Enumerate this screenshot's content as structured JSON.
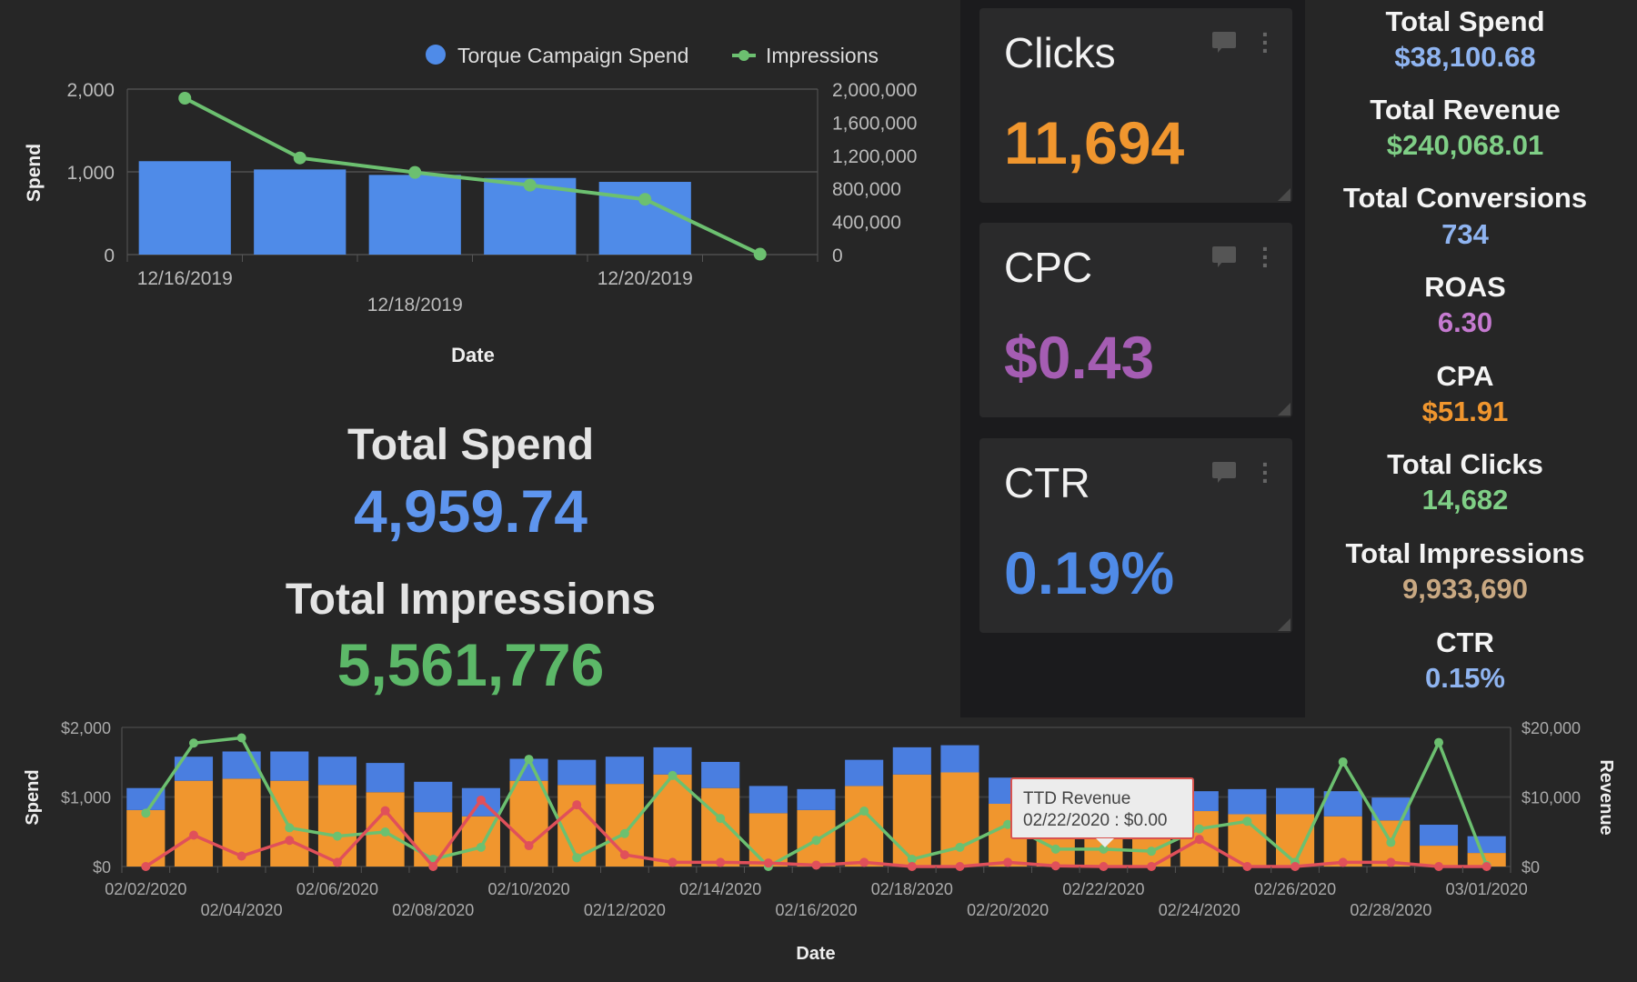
{
  "top_chart": {
    "legend": {
      "spend": "Torque Campaign Spend",
      "impressions": "Impressions"
    },
    "ylabel": "Spend",
    "xlabel": "Date",
    "colors": {
      "spend": "#4f8be8",
      "impressions": "#6cc070"
    }
  },
  "summary": {
    "total_spend_label": "Total Spend",
    "total_spend_value": "4,959.74",
    "total_impressions_label": "Total Impressions",
    "total_impressions_value": "5,561,776"
  },
  "cards": [
    {
      "title": "Clicks",
      "value": "11,694",
      "color": "#f0962e",
      "comment_icon": "comment-icon",
      "menu_icon": "kebab-menu-icon"
    },
    {
      "title": "CPC",
      "value": "$0.43",
      "color": "#a55db3",
      "comment_icon": "comment-icon",
      "menu_icon": "kebab-menu-icon"
    },
    {
      "title": "CTR",
      "value": "0.19%",
      "color": "#4f8be8",
      "comment_icon": "comment-icon",
      "menu_icon": "kebab-menu-icon"
    }
  ],
  "kpis": [
    {
      "label": "Total Spend",
      "value": "$38,100.68",
      "color": "#8fb4f0"
    },
    {
      "label": "Total Revenue",
      "value": "$240,068.01",
      "color": "#7fcf86"
    },
    {
      "label": "Total Conversions",
      "value": "734",
      "color": "#8fb4f0"
    },
    {
      "label": "ROAS",
      "value": "6.30",
      "color": "#c57ad0"
    },
    {
      "label": "CPA",
      "value": "$51.91",
      "color": "#f0962e"
    },
    {
      "label": "Total Clicks",
      "value": "14,682",
      "color": "#7fcf86"
    },
    {
      "label": "Total Impressions",
      "value": "9,933,690",
      "color": "#c8a882"
    },
    {
      "label": "CTR",
      "value": "0.15%",
      "color": "#8fb4f0"
    }
  ],
  "bottom_chart": {
    "ylabel": "Spend",
    "y2label": "Revenue",
    "xlabel": "Date",
    "tooltip": {
      "title": "TTD Revenue",
      "text": "02/22/2020 : $0.00"
    }
  },
  "chart_data": [
    {
      "type": "bar+line",
      "xlabel": "Date",
      "ylabel": "Spend",
      "ylim": [
        0,
        2000
      ],
      "y2lim": [
        0,
        2000000
      ],
      "yticks": [
        "0",
        "1,000",
        "2,000"
      ],
      "y2ticks": [
        "0",
        "400,000",
        "800,000",
        "1,200,000",
        "1,600,000",
        "2,000,000"
      ],
      "x": [
        "12/16/2019",
        "12/17/2019",
        "12/18/2019",
        "12/19/2019",
        "12/20/2019",
        "12/21/2019"
      ],
      "xtick_labels": [
        "12/16/2019",
        "12/18/2019",
        "12/20/2019"
      ],
      "legend": "top-right",
      "grid": true,
      "series": [
        {
          "name": "Torque Campaign Spend",
          "type": "bar",
          "axis": "left",
          "color": "#4f8be8",
          "values": [
            1129,
            1029,
            963,
            926,
            879,
            null
          ]
        },
        {
          "name": "Impressions",
          "type": "line",
          "axis": "right",
          "color": "#6cc070",
          "values": [
            1890000,
            1168000,
            993000,
            839000,
            668000,
            5000
          ]
        }
      ]
    },
    {
      "type": "stacked-bar+line",
      "xlabel": "Date",
      "ylabel": "Spend",
      "y2label": "Revenue",
      "ylim": [
        0,
        2000
      ],
      "y2lim": [
        0,
        20000
      ],
      "yticks": [
        "$0",
        "$1,000",
        "$2,000"
      ],
      "y2ticks": [
        "$0",
        "$10,000",
        "$20,000"
      ],
      "x": [
        "02/02/2020",
        "02/03/2020",
        "02/04/2020",
        "02/05/2020",
        "02/06/2020",
        "02/07/2020",
        "02/08/2020",
        "02/09/2020",
        "02/10/2020",
        "02/11/2020",
        "02/12/2020",
        "02/13/2020",
        "02/14/2020",
        "02/15/2020",
        "02/16/2020",
        "02/17/2020",
        "02/18/2020",
        "02/19/2020",
        "02/20/2020",
        "02/21/2020",
        "02/22/2020",
        "02/23/2020",
        "02/24/2020",
        "02/25/2020",
        "02/26/2020",
        "02/27/2020",
        "02/28/2020",
        "02/29/2020",
        "03/01/2020"
      ],
      "xtick_labels": [
        "02/02/2020",
        "02/04/2020",
        "02/06/2020",
        "02/08/2020",
        "02/10/2020",
        "02/12/2020",
        "02/14/2020",
        "02/16/2020",
        "02/18/2020",
        "02/20/2020",
        "02/22/2020",
        "02/24/2020",
        "02/26/2020",
        "02/28/2020",
        "03/01/2020"
      ],
      "grid": true,
      "series": [
        {
          "type": "bar",
          "stack": "spend",
          "axis": "left",
          "color": "#f0962e",
          "values": [
            812,
            1233,
            1263,
            1233,
            1173,
            1068,
            782,
            722,
            1233,
            1173,
            1188,
            1323,
            1128,
            767,
            812,
            1158,
            1323,
            1353,
            902,
            720,
            700,
            750,
            797,
            752,
            752,
            722,
            662,
            300,
            195
          ]
        },
        {
          "type": "bar",
          "stack": "spend",
          "axis": "left",
          "color": "#4a7ee0",
          "values": [
            316,
            346,
            391,
            421,
            406,
            421,
            436,
            406,
            316,
            361,
            391,
            391,
            376,
            391,
            301,
            376,
            391,
            391,
            376,
            380,
            400,
            400,
            286,
            361,
            376,
            361,
            330,
            301,
            241
          ]
        },
        {
          "type": "line",
          "axis": "right",
          "color": "#6cc070",
          "values": [
            7670,
            17744,
            18496,
            5564,
            4361,
            4962,
            1050,
            2767,
            15414,
            1263,
            4737,
            13083,
            6917,
            0,
            3760,
            7970,
            1050,
            2767,
            6045,
            2500,
            2500,
            2200,
            5414,
            6496,
            600,
            15037,
            3460,
            17834,
            150
          ]
        },
        {
          "name": "TTD Revenue",
          "type": "line",
          "axis": "right",
          "color": "#e0505a",
          "values": [
            0,
            4511,
            1500,
            3760,
            600,
            8015,
            0,
            9548,
            3000,
            8872,
            1684,
            600,
            600,
            500,
            200,
            600,
            0,
            0,
            600,
            100,
            0,
            0,
            3900,
            0,
            0,
            600,
            600,
            0,
            0
          ]
        }
      ]
    }
  ]
}
